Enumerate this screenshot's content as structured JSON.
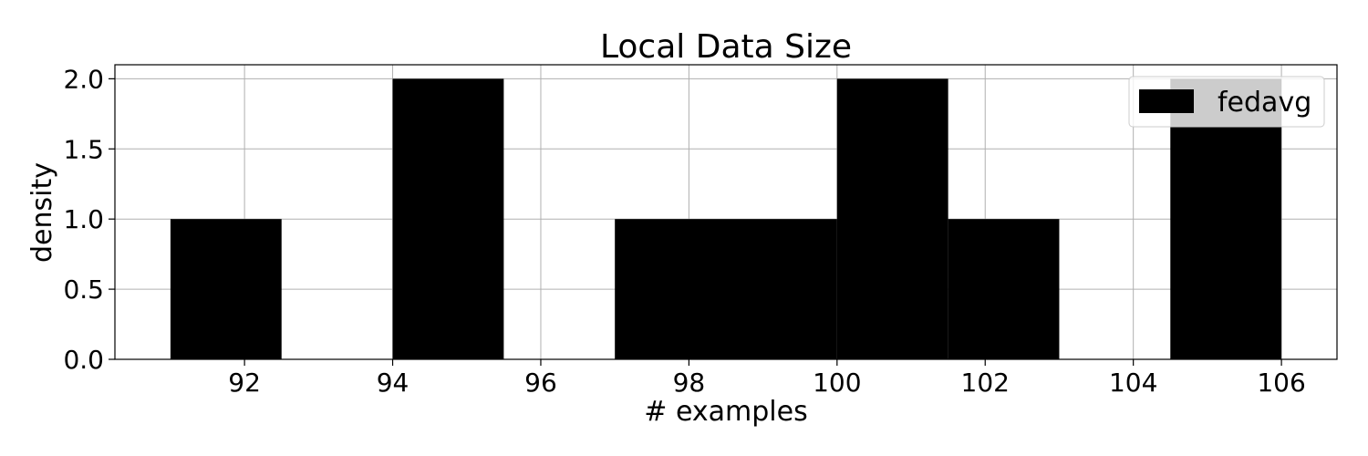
{
  "chart_data": {
    "type": "bar",
    "title": "Local Data Size",
    "xlabel": "# examples",
    "ylabel": "density",
    "xlim": [
      90.25,
      106.75
    ],
    "ylim": [
      0,
      2.1
    ],
    "xticks": [
      92,
      94,
      96,
      98,
      100,
      102,
      104,
      106
    ],
    "xtick_labels": [
      "92",
      "94",
      "96",
      "98",
      "100",
      "102",
      "104",
      "106"
    ],
    "yticks": [
      0,
      0.5,
      1.0,
      1.5,
      2.0
    ],
    "ytick_labels": [
      "0.0",
      "0.5",
      "1.0",
      "1.5",
      "2.0"
    ],
    "grid": true,
    "legend_position": "top-right",
    "series": [
      {
        "name": "fedavg",
        "color": "#000000",
        "bins": [
          {
            "x0": 91.0,
            "x1": 92.5,
            "value": 1
          },
          {
            "x0": 92.5,
            "x1": 94.0,
            "value": 0
          },
          {
            "x0": 94.0,
            "x1": 95.5,
            "value": 2
          },
          {
            "x0": 95.5,
            "x1": 97.0,
            "value": 0
          },
          {
            "x0": 97.0,
            "x1": 98.5,
            "value": 1
          },
          {
            "x0": 98.5,
            "x1": 100.0,
            "value": 1
          },
          {
            "x0": 100.0,
            "x1": 101.5,
            "value": 2
          },
          {
            "x0": 101.5,
            "x1": 103.0,
            "value": 1
          },
          {
            "x0": 103.0,
            "x1": 104.5,
            "value": 0
          },
          {
            "x0": 104.5,
            "x1": 106.0,
            "value": 2
          }
        ]
      }
    ]
  }
}
